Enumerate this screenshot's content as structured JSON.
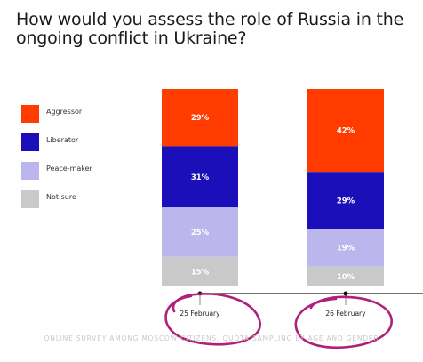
{
  "chart_data": {
    "type": "bar",
    "stacked": true,
    "title": "How would you assess the role of Russia in the ongoing conflict in Ukraine?",
    "categories": [
      "25 February",
      "26 February"
    ],
    "series": [
      {
        "name": "Aggressor",
        "color": "#ff3b00",
        "values": [
          29,
          42
        ],
        "labels": [
          "29%",
          "42%"
        ]
      },
      {
        "name": "Liberator",
        "color": "#1a0fb8",
        "values": [
          31,
          29
        ],
        "labels": [
          "31%",
          "29%"
        ]
      },
      {
        "name": "Peace-maker",
        "color": "#bbb6ec",
        "values": [
          25,
          19
        ],
        "labels": [
          "25%",
          "19%"
        ]
      },
      {
        "name": "Not sure",
        "color": "#c9c9c9",
        "values": [
          15,
          10
        ],
        "labels": [
          "15%",
          "10%"
        ]
      }
    ],
    "ylim": [
      0,
      100
    ],
    "legend_position": "left"
  },
  "footer": "ONLINE SURVEY AMONG MOSCOW CITIZENS, QUOTA SAMPLING BY AGE AND GENDER"
}
